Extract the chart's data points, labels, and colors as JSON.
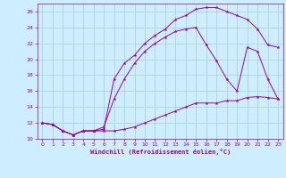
{
  "xlabel": "Windchill (Refroidissement éolien,°C)",
  "background_color": "#cceeff",
  "line_color": "#990099",
  "grid_color": "#aacccc",
  "xlim": [
    -0.5,
    23.5
  ],
  "ylim": [
    10,
    27
  ],
  "yticks": [
    10,
    12,
    14,
    16,
    18,
    20,
    22,
    24,
    26
  ],
  "xticks": [
    0,
    1,
    2,
    3,
    4,
    5,
    6,
    7,
    8,
    9,
    10,
    11,
    12,
    13,
    14,
    15,
    16,
    17,
    18,
    19,
    20,
    21,
    22,
    23
  ],
  "line1_x": [
    0,
    1,
    2,
    3,
    4,
    5,
    6,
    7,
    8,
    9,
    10,
    11,
    12,
    13,
    14,
    15,
    16,
    17,
    18,
    19,
    20,
    21,
    22,
    23
  ],
  "line1_y": [
    12.0,
    11.8,
    11.0,
    10.5,
    11.0,
    11.0,
    11.0,
    11.0,
    11.2,
    11.5,
    12.0,
    12.5,
    13.0,
    13.5,
    14.0,
    14.5,
    14.5,
    14.5,
    14.8,
    14.8,
    15.2,
    15.3,
    15.2,
    15.0
  ],
  "line2_x": [
    0,
    1,
    2,
    3,
    4,
    5,
    6,
    7,
    8,
    9,
    10,
    11,
    12,
    13,
    14,
    15,
    16,
    17,
    18,
    19,
    20,
    21,
    22,
    23
  ],
  "line2_y": [
    12.0,
    11.8,
    11.0,
    10.5,
    11.0,
    11.0,
    11.5,
    15.0,
    17.5,
    19.5,
    21.0,
    22.0,
    22.8,
    23.5,
    23.8,
    24.0,
    21.8,
    19.8,
    17.5,
    16.0,
    21.5,
    21.0,
    17.5,
    15.0
  ],
  "line3_x": [
    0,
    1,
    2,
    3,
    4,
    5,
    6,
    7,
    8,
    9,
    10,
    11,
    12,
    13,
    14,
    15,
    16,
    17,
    18,
    19,
    20,
    21,
    22,
    23
  ],
  "line3_y": [
    12.0,
    11.8,
    11.0,
    10.5,
    11.0,
    11.0,
    11.2,
    17.5,
    19.5,
    20.5,
    22.0,
    23.0,
    23.8,
    25.0,
    25.5,
    26.3,
    26.5,
    26.5,
    26.0,
    25.5,
    25.0,
    23.8,
    21.8,
    21.5
  ]
}
